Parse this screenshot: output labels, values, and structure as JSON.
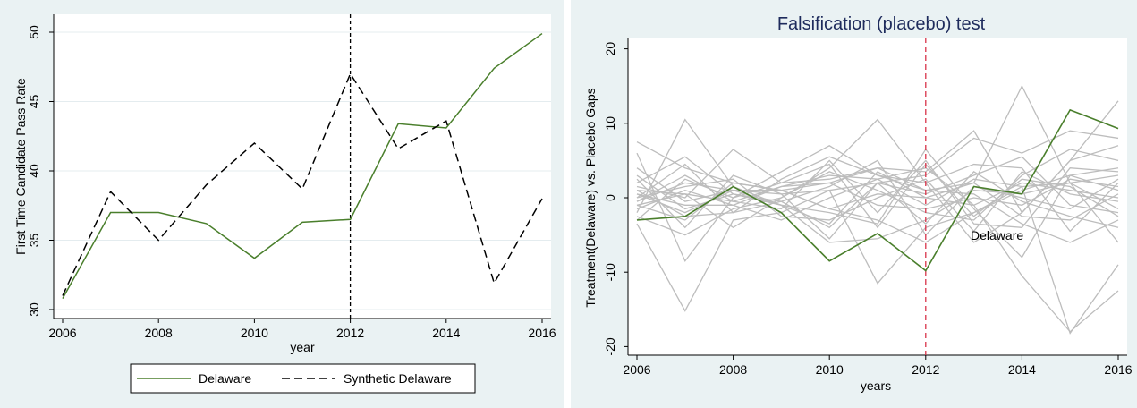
{
  "chart_data": [
    {
      "type": "line",
      "title": "",
      "xlabel": "year",
      "ylabel": "First Time Candidate Pass Rate",
      "x": [
        2006,
        2007,
        2008,
        2009,
        2010,
        2011,
        2012,
        2013,
        2014,
        2015,
        2016
      ],
      "xlim": [
        2006,
        2016
      ],
      "ylim": [
        30,
        50
      ],
      "xticks": [
        "2006",
        "2008",
        "2010",
        "2012",
        "2014",
        "2016"
      ],
      "yticks": [
        "30",
        "35",
        "40",
        "45",
        "50"
      ],
      "grid": true,
      "legend_position": "bottom",
      "vline": 2012,
      "series": [
        {
          "name": "Delaware",
          "color": "#4a7f2c",
          "dash": "solid",
          "values": [
            30.8,
            37.0,
            37.0,
            36.2,
            33.7,
            36.3,
            36.5,
            43.4,
            43.1,
            47.4,
            49.9
          ]
        },
        {
          "name": "Synthetic Delaware",
          "color": "#000000",
          "dash": "dashed",
          "values": [
            31.0,
            38.5,
            35.0,
            39.0,
            42.0,
            38.7,
            47.0,
            41.6,
            43.6,
            31.9,
            38.0
          ]
        }
      ]
    },
    {
      "type": "line",
      "title": "Falsification (placebo) test",
      "xlabel": "years",
      "ylabel": "Treatment(Delaware) vs. Placebo Gaps",
      "x": [
        2006,
        2007,
        2008,
        2009,
        2010,
        2011,
        2012,
        2013,
        2014,
        2015,
        2016
      ],
      "xlim": [
        2006,
        2016
      ],
      "ylim": [
        -20,
        20
      ],
      "xticks": [
        "2006",
        "2008",
        "2010",
        "2012",
        "2014",
        "2016"
      ],
      "yticks": [
        "-20",
        "-10",
        "0",
        "10",
        "20"
      ],
      "grid": false,
      "vline": 2012,
      "annotation": "Delaware",
      "treated": {
        "name": "Delaware",
        "color": "#4a7f2c",
        "values": [
          -3.0,
          -2.5,
          1.5,
          -2.0,
          -8.5,
          -4.8,
          -9.8,
          1.5,
          0.5,
          11.8,
          9.3
        ]
      },
      "placebo_color": "#bdbdbd",
      "placebos": [
        [
          7.5,
          4.0,
          2.0,
          1.0,
          -1.5,
          -3.0,
          -6.0,
          -2.0,
          1.0,
          3.0,
          4.0
        ],
        [
          -3.5,
          -15.2,
          -3.0,
          -2.0,
          1.0,
          2.0,
          0.5,
          3.0,
          5.5,
          -1.0,
          -2.0
        ],
        [
          -2.0,
          10.5,
          1.5,
          -1.0,
          -6.0,
          -5.5,
          -3.0,
          1.0,
          0.5,
          2.0,
          3.0
        ],
        [
          6.0,
          -8.5,
          0.0,
          3.5,
          7.0,
          3.0,
          1.0,
          2.0,
          15.0,
          2.0,
          -6.0
        ],
        [
          1.0,
          0.5,
          -4.0,
          0.0,
          4.0,
          10.5,
          2.0,
          -6.0,
          -2.0,
          5.0,
          13.0
        ],
        [
          0.5,
          -1.0,
          -1.0,
          1.5,
          3.0,
          2.5,
          4.0,
          -1.0,
          -10.5,
          -18.0,
          -12.5
        ],
        [
          -0.5,
          2.0,
          1.0,
          0.5,
          1.0,
          -11.5,
          -4.0,
          -2.0,
          1.5,
          -18.2,
          -9.0
        ],
        [
          2.0,
          5.5,
          0.5,
          -0.5,
          -4.0,
          2.0,
          3.0,
          8.0,
          6.0,
          9.0,
          8.0
        ],
        [
          -1.0,
          -3.0,
          2.0,
          1.0,
          2.0,
          4.0,
          3.5,
          9.0,
          -2.0,
          5.0,
          7.0
        ],
        [
          0.0,
          4.5,
          -2.0,
          2.5,
          5.5,
          3.0,
          2.0,
          4.5,
          4.0,
          -4.5,
          2.0
        ],
        [
          3.0,
          -1.5,
          0.5,
          -1.0,
          -2.0,
          -3.5,
          6.5,
          -1.5,
          -8.0,
          3.0,
          1.0
        ],
        [
          -2.5,
          -5.0,
          -1.5,
          0.0,
          3.5,
          1.0,
          -2.0,
          -3.0,
          3.0,
          6.5,
          5.0
        ],
        [
          1.5,
          0.0,
          6.5,
          2.0,
          2.5,
          4.0,
          1.0,
          0.5,
          -3.5,
          -6.0,
          -3.0
        ],
        [
          -1.5,
          1.0,
          -1.0,
          -3.0,
          0.0,
          2.5,
          -1.0,
          2.5,
          1.5,
          2.0,
          -1.5
        ],
        [
          0.5,
          -2.0,
          1.0,
          1.0,
          -1.5,
          0.5,
          0.0,
          -1.0,
          2.0,
          1.0,
          0.0
        ],
        [
          -0.5,
          3.0,
          -0.5,
          -1.5,
          5.0,
          -2.0,
          5.0,
          -3.5,
          -4.0,
          4.0,
          3.5
        ],
        [
          2.5,
          -4.0,
          3.0,
          0.5,
          -5.5,
          2.0,
          -3.5,
          3.5,
          -0.5,
          -2.5,
          -4.0
        ],
        [
          -3.0,
          2.5,
          0.0,
          2.0,
          4.5,
          -4.0,
          4.5,
          -2.5,
          2.5,
          1.5,
          -2.5
        ],
        [
          1.0,
          -2.5,
          -2.0,
          -0.5,
          1.5,
          5.0,
          -5.0,
          1.5,
          0.0,
          -1.5,
          2.5
        ],
        [
          0.0,
          1.5,
          2.5,
          -2.5,
          -3.0,
          0.0,
          2.5,
          -4.5,
          3.5,
          0.5,
          -0.5
        ],
        [
          -1.0,
          0.5,
          -0.5,
          1.5,
          2.0,
          -1.0,
          -1.5,
          0.0,
          -1.0,
          2.5,
          1.5
        ],
        [
          4.0,
          -0.5,
          1.0,
          -1.0,
          -3.5,
          3.5,
          0.0,
          2.0,
          -2.5,
          -3.0,
          0.5
        ]
      ]
    }
  ]
}
